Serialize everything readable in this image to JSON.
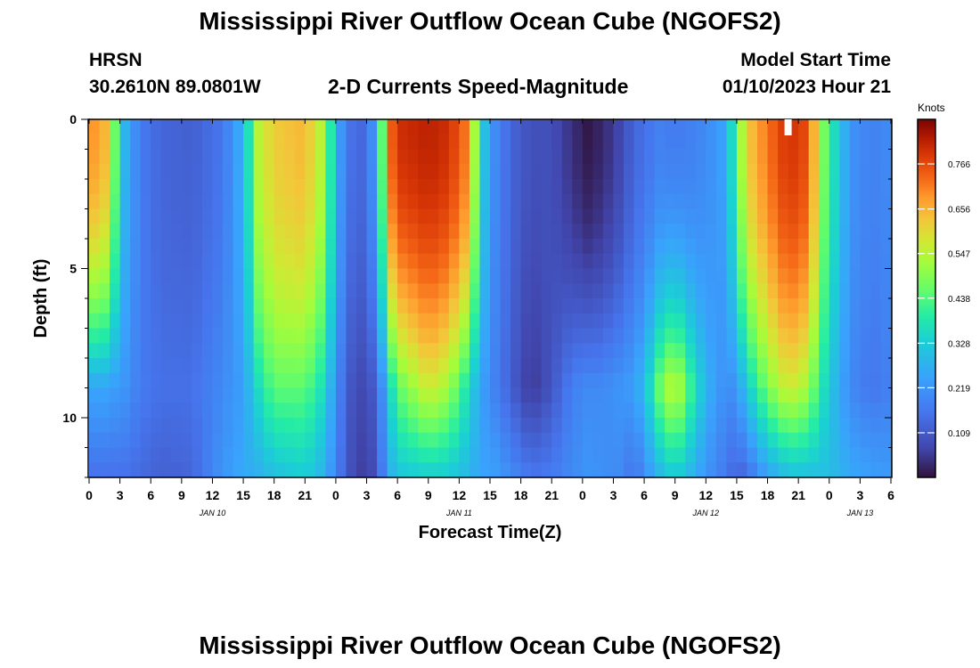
{
  "header": {
    "title": "Mississippi River Outflow Ocean Cube (NGOFS2)",
    "station": "HRSN",
    "coords": "30.2610N  89.0801W",
    "subtitle": "2-D Currents Speed-Magnitude",
    "model_start_label": "Model Start Time",
    "model_start_value": "01/10/2023 Hour 21"
  },
  "footer": {
    "title_repeat": "Mississippi River Outflow Ocean Cube (NGOFS2)"
  },
  "chart_data": {
    "type": "heatmap",
    "title": "2-D Currents Speed-Magnitude",
    "xlabel": "Forecast Time(Z)",
    "ylabel": "Depth (ft)",
    "x_range_hours": [
      0,
      78
    ],
    "y_range_ft": [
      0,
      12
    ],
    "x_tick_labels": [
      "0",
      "3",
      "6",
      "9",
      "12",
      "15",
      "18",
      "21",
      "0",
      "3",
      "6",
      "9",
      "12",
      "15",
      "18",
      "21",
      "0",
      "3",
      "6",
      "9",
      "12",
      "15",
      "18",
      "21",
      "0",
      "3",
      "6"
    ],
    "y_tick_labels": [
      "0",
      "5",
      "10"
    ],
    "date_labels": [
      {
        "hour": 12,
        "label": "JAN 10"
      },
      {
        "hour": 36,
        "label": "JAN 11"
      },
      {
        "hour": 60,
        "label": "JAN 12"
      },
      {
        "hour": 75,
        "label": "JAN 13"
      }
    ],
    "colorbar": {
      "unit": "Knots",
      "min": 0.0,
      "max": 0.875,
      "ticks": [
        "0.766",
        "0.656",
        "0.547",
        "0.438",
        "0.328",
        "0.219",
        "0.109"
      ]
    },
    "marker_hour": 68,
    "keyframes": [
      {
        "h": 0,
        "s": 0.7,
        "b": 0.25,
        "lo": 0.15
      },
      {
        "h": 1.5,
        "s": 0.65,
        "b": 0.25,
        "lo": 0.15
      },
      {
        "h": 3.5,
        "s": 0.28,
        "b": 0.22,
        "lo": 0.15
      },
      {
        "h": 5,
        "s": 0.17,
        "b": 0.17,
        "lo": 0.14
      },
      {
        "h": 7,
        "s": 0.13,
        "b": 0.15,
        "lo": 0.12
      },
      {
        "h": 10,
        "s": 0.12,
        "b": 0.15,
        "lo": 0.13
      },
      {
        "h": 13,
        "s": 0.16,
        "b": 0.2,
        "lo": 0.22
      },
      {
        "h": 15,
        "s": 0.28,
        "b": 0.24,
        "lo": 0.26
      },
      {
        "h": 16.5,
        "s": 0.55,
        "b": 0.36,
        "lo": 0.27
      },
      {
        "h": 18,
        "s": 0.62,
        "b": 0.45,
        "lo": 0.3
      },
      {
        "h": 21,
        "s": 0.65,
        "b": 0.45,
        "lo": 0.33
      },
      {
        "h": 23,
        "s": 0.52,
        "b": 0.35,
        "lo": 0.27
      },
      {
        "h": 24,
        "s": 0.26,
        "b": 0.2,
        "lo": 0.18
      },
      {
        "h": 25.5,
        "s": 0.15,
        "b": 0.1,
        "lo": 0.09
      },
      {
        "h": 27,
        "s": 0.13,
        "b": 0.07,
        "lo": 0.05
      },
      {
        "h": 28.2,
        "s": 0.3,
        "b": 0.15,
        "lo": 0.12
      },
      {
        "h": 29,
        "s": 0.7,
        "b": 0.3,
        "lo": 0.25
      },
      {
        "h": 30,
        "s": 0.8,
        "b": 0.45,
        "lo": 0.31
      },
      {
        "h": 33,
        "s": 0.82,
        "b": 0.58,
        "lo": 0.33
      },
      {
        "h": 35,
        "s": 0.8,
        "b": 0.52,
        "lo": 0.32
      },
      {
        "h": 37,
        "s": 0.7,
        "b": 0.35,
        "lo": 0.28
      },
      {
        "h": 38,
        "s": 0.35,
        "b": 0.25,
        "lo": 0.25
      },
      {
        "h": 39.5,
        "s": 0.2,
        "b": 0.18,
        "lo": 0.24
      },
      {
        "h": 41,
        "s": 0.13,
        "b": 0.12,
        "lo": 0.2
      },
      {
        "h": 43,
        "s": 0.09,
        "b": 0.05,
        "lo": 0.16
      },
      {
        "h": 45,
        "s": 0.09,
        "b": 0.1,
        "lo": 0.17
      },
      {
        "h": 47,
        "s": 0.04,
        "b": 0.18,
        "lo": 0.2
      },
      {
        "h": 48.5,
        "s": 0.01,
        "b": 0.2,
        "lo": 0.22
      },
      {
        "h": 50,
        "s": 0.03,
        "b": 0.2,
        "lo": 0.21
      },
      {
        "h": 51.5,
        "s": 0.07,
        "b": 0.22,
        "lo": 0.2
      },
      {
        "h": 53,
        "s": 0.13,
        "b": 0.24,
        "lo": 0.15
      },
      {
        "h": 54,
        "s": 0.15,
        "b": 0.3,
        "lo": 0.2
      },
      {
        "h": 55.5,
        "s": 0.18,
        "b": 0.47,
        "lo": 0.28
      },
      {
        "h": 57,
        "s": 0.17,
        "b": 0.58,
        "lo": 0.33
      },
      {
        "h": 58.5,
        "s": 0.18,
        "b": 0.42,
        "lo": 0.28
      },
      {
        "h": 60,
        "s": 0.2,
        "b": 0.28,
        "lo": 0.22
      },
      {
        "h": 62,
        "s": 0.25,
        "b": 0.2,
        "lo": 0.16
      },
      {
        "h": 63,
        "s": 0.45,
        "b": 0.22,
        "lo": 0.12
      },
      {
        "h": 64,
        "s": 0.62,
        "b": 0.32,
        "lo": 0.14
      },
      {
        "h": 66,
        "s": 0.72,
        "b": 0.48,
        "lo": 0.24
      },
      {
        "h": 68,
        "s": 0.8,
        "b": 0.58,
        "lo": 0.3
      },
      {
        "h": 70,
        "s": 0.76,
        "b": 0.52,
        "lo": 0.3
      },
      {
        "h": 71,
        "s": 0.55,
        "b": 0.4,
        "lo": 0.3
      },
      {
        "h": 72,
        "s": 0.4,
        "b": 0.32,
        "lo": 0.3
      },
      {
        "h": 73,
        "s": 0.32,
        "b": 0.26,
        "lo": 0.28
      },
      {
        "h": 74,
        "s": 0.22,
        "b": 0.2,
        "lo": 0.26
      },
      {
        "h": 76,
        "s": 0.18,
        "b": 0.16,
        "lo": 0.24
      },
      {
        "h": 78,
        "s": 0.2,
        "b": 0.18,
        "lo": 0.23
      }
    ]
  }
}
